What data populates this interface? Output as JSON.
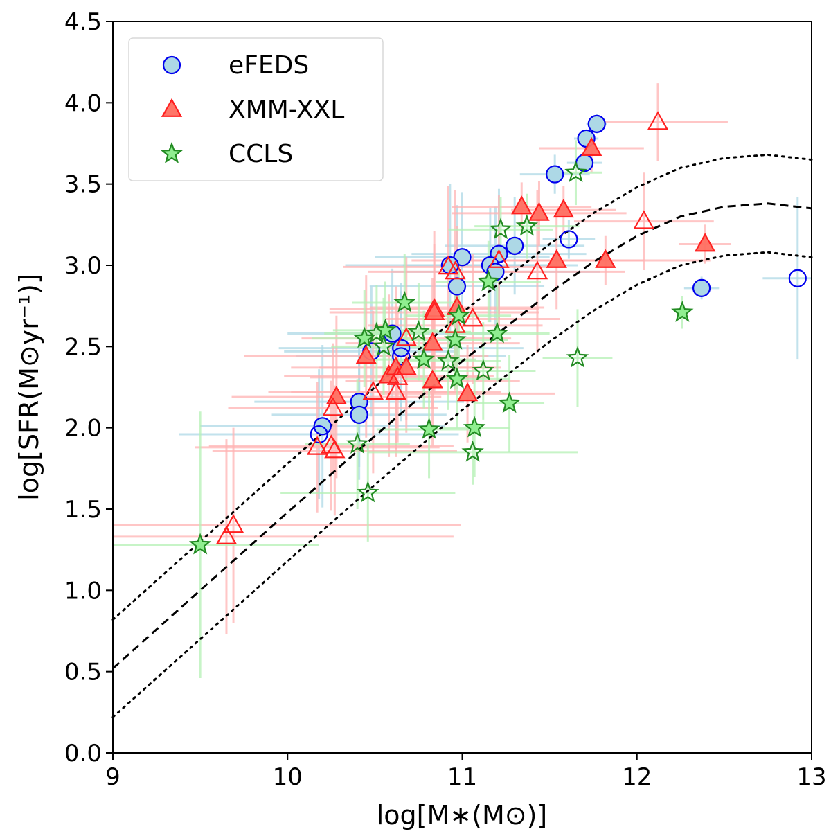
{
  "chart_data": {
    "type": "scatter",
    "title": "",
    "xlabel": "log[M∗(M⊙)]",
    "ylabel": "log[SFR(M⊙yr⁻¹)]",
    "xlim": [
      9,
      13
    ],
    "ylim": [
      0,
      4.5
    ],
    "xticks": [
      "9",
      "10",
      "11",
      "12",
      "13"
    ],
    "yticks": [
      "0.0",
      "0.5",
      "1.0",
      "1.5",
      "2.0",
      "2.5",
      "3.0",
      "3.5",
      "4.0",
      "4.5"
    ],
    "grid": false,
    "legend": {
      "position": "top-left",
      "entries": [
        "eFEDS",
        "XMM-XXL",
        "CCLS"
      ]
    },
    "series": [
      {
        "name": "eFEDS",
        "marker": "circle",
        "color": "#0000ee",
        "fill": "#add8e6",
        "errorbar_color": "#add8e6",
        "points": [
          {
            "x": 11.77,
            "y": 3.87,
            "xerr": 0.06,
            "yerr": 0.06,
            "filled": true
          },
          {
            "x": 11.71,
            "y": 3.78,
            "xerr": 0.07,
            "yerr": 0.05,
            "filled": true
          },
          {
            "x": 11.7,
            "y": 3.63,
            "xerr": 0.1,
            "yerr": 0.06,
            "filled": true
          },
          {
            "x": 11.53,
            "y": 3.56,
            "xerr": 0.2,
            "yerr": 0.12,
            "filled": true
          },
          {
            "x": 11.61,
            "y": 3.16,
            "xerr": 0.15,
            "yerr": 0.12,
            "filled": false
          },
          {
            "x": 11.3,
            "y": 3.12,
            "xerr": 0.4,
            "yerr": 0.3,
            "filled": true
          },
          {
            "x": 11.21,
            "y": 3.07,
            "xerr": 0.5,
            "yerr": 0.4,
            "filled": true
          },
          {
            "x": 11.0,
            "y": 3.05,
            "xerr": 0.5,
            "yerr": 0.4,
            "filled": true
          },
          {
            "x": 11.16,
            "y": 3.0,
            "xerr": 0.5,
            "yerr": 0.35,
            "filled": true
          },
          {
            "x": 11.19,
            "y": 2.96,
            "xerr": 0.6,
            "yerr": 0.4,
            "filled": true
          },
          {
            "x": 10.93,
            "y": 3.0,
            "xerr": 0.6,
            "yerr": 0.5,
            "filled": true
          },
          {
            "x": 10.97,
            "y": 2.87,
            "xerr": 0.5,
            "yerr": 0.5,
            "filled": true
          },
          {
            "x": 10.6,
            "y": 2.58,
            "xerr": 0.6,
            "yerr": 0.4,
            "filled": true
          },
          {
            "x": 10.65,
            "y": 2.49,
            "xerr": 0.7,
            "yerr": 0.4,
            "filled": true
          },
          {
            "x": 10.65,
            "y": 2.44,
            "xerr": 0.6,
            "yerr": 0.4,
            "filled": false
          },
          {
            "x": 10.48,
            "y": 2.47,
            "xerr": 0.5,
            "yerr": 0.4,
            "filled": false
          },
          {
            "x": 10.41,
            "y": 2.16,
            "xerr": 0.6,
            "yerr": 0.4,
            "filled": true
          },
          {
            "x": 10.41,
            "y": 2.08,
            "xerr": 0.5,
            "yerr": 0.4,
            "filled": true
          },
          {
            "x": 10.2,
            "y": 2.01,
            "xerr": 0.7,
            "yerr": 0.5,
            "filled": true
          },
          {
            "x": 10.18,
            "y": 1.96,
            "xerr": 0.8,
            "yerr": 0.4,
            "filled": false
          },
          {
            "x": 12.37,
            "y": 2.86,
            "xerr": 0.1,
            "yerr": 0.07,
            "filled": true
          },
          {
            "x": 12.92,
            "y": 2.92,
            "xerr": 0.2,
            "yerr": 0.5,
            "filled": false
          }
        ]
      },
      {
        "name": "XMM-XXL",
        "marker": "triangle",
        "color": "#ff2020",
        "fill": "#ff6f61",
        "errorbar_color": "#ffb3b3",
        "points": [
          {
            "x": 12.12,
            "y": 3.88,
            "xerr": 0.4,
            "yerr": 0.24,
            "filled": false
          },
          {
            "x": 11.74,
            "y": 3.72,
            "xerr": 0.3,
            "yerr": 0.15,
            "filled": true
          },
          {
            "x": 11.34,
            "y": 3.36,
            "xerr": 0.4,
            "yerr": 0.15,
            "filled": true
          },
          {
            "x": 11.44,
            "y": 3.32,
            "xerr": 0.5,
            "yerr": 0.2,
            "filled": true
          },
          {
            "x": 11.58,
            "y": 3.34,
            "xerr": 0.3,
            "yerr": 0.15,
            "filled": true
          },
          {
            "x": 12.04,
            "y": 3.27,
            "xerr": 0.4,
            "yerr": 0.3,
            "filled": false
          },
          {
            "x": 12.39,
            "y": 3.13,
            "xerr": 0.15,
            "yerr": 0.12,
            "filled": true
          },
          {
            "x": 11.54,
            "y": 3.03,
            "xerr": 0.5,
            "yerr": 0.3,
            "filled": true
          },
          {
            "x": 11.82,
            "y": 3.03,
            "xerr": 0.6,
            "yerr": 0.15,
            "filled": true
          },
          {
            "x": 11.43,
            "y": 2.96,
            "xerr": 0.5,
            "yerr": 0.5,
            "filled": false
          },
          {
            "x": 11.21,
            "y": 3.03,
            "xerr": 0.5,
            "yerr": 0.4,
            "filled": false
          },
          {
            "x": 10.92,
            "y": 2.99,
            "xerr": 0.6,
            "yerr": 0.5,
            "filled": false
          },
          {
            "x": 10.96,
            "y": 2.96,
            "xerr": 0.5,
            "yerr": 0.5,
            "filled": false
          },
          {
            "x": 10.84,
            "y": 2.73,
            "xerr": 0.6,
            "yerr": 0.4,
            "filled": false
          },
          {
            "x": 10.84,
            "y": 2.71,
            "xerr": 0.6,
            "yerr": 0.5,
            "filled": true
          },
          {
            "x": 10.97,
            "y": 2.74,
            "xerr": 0.5,
            "yerr": 0.5,
            "filled": true
          },
          {
            "x": 10.96,
            "y": 2.63,
            "xerr": 0.5,
            "yerr": 0.4,
            "filled": false
          },
          {
            "x": 11.06,
            "y": 2.67,
            "xerr": 0.5,
            "yerr": 0.4,
            "filled": false
          },
          {
            "x": 10.83,
            "y": 2.52,
            "xerr": 0.5,
            "yerr": 0.4,
            "filled": true
          },
          {
            "x": 10.68,
            "y": 2.55,
            "xerr": 0.6,
            "yerr": 0.5,
            "filled": false
          },
          {
            "x": 10.45,
            "y": 2.44,
            "xerr": 0.7,
            "yerr": 0.5,
            "filled": true
          },
          {
            "x": 10.58,
            "y": 2.32,
            "xerr": 0.6,
            "yerr": 0.5,
            "filled": true
          },
          {
            "x": 10.62,
            "y": 2.37,
            "xerr": 0.6,
            "yerr": 0.5,
            "filled": true
          },
          {
            "x": 10.68,
            "y": 2.37,
            "xerr": 0.5,
            "yerr": 0.4,
            "filled": true
          },
          {
            "x": 10.63,
            "y": 2.31,
            "xerr": 0.5,
            "yerr": 0.4,
            "filled": false
          },
          {
            "x": 10.62,
            "y": 2.22,
            "xerr": 0.6,
            "yerr": 0.4,
            "filled": false
          },
          {
            "x": 10.49,
            "y": 2.22,
            "xerr": 0.6,
            "yerr": 0.5,
            "filled": false
          },
          {
            "x": 10.83,
            "y": 2.29,
            "xerr": 0.5,
            "yerr": 0.4,
            "filled": true
          },
          {
            "x": 11.03,
            "y": 2.21,
            "xerr": 0.5,
            "yerr": 0.3,
            "filled": true
          },
          {
            "x": 10.28,
            "y": 2.19,
            "xerr": 0.6,
            "yerr": 0.5,
            "filled": true
          },
          {
            "x": 10.26,
            "y": 2.12,
            "xerr": 0.6,
            "yerr": 0.4,
            "filled": false
          },
          {
            "x": 10.17,
            "y": 1.88,
            "xerr": 0.7,
            "yerr": 0.4,
            "filled": false
          },
          {
            "x": 10.25,
            "y": 1.89,
            "xerr": 0.7,
            "yerr": 0.4,
            "filled": false
          },
          {
            "x": 10.27,
            "y": 1.86,
            "xerr": 0.7,
            "yerr": 0.4,
            "filled": false
          },
          {
            "x": 9.69,
            "y": 1.4,
            "xerr": 1.3,
            "yerr": 0.6,
            "filled": false
          },
          {
            "x": 9.65,
            "y": 1.33,
            "xerr": 1.3,
            "yerr": 0.6,
            "filled": false
          }
        ]
      },
      {
        "name": "CCLS",
        "marker": "star",
        "color": "#228b22",
        "fill": "#90ee90",
        "errorbar_color": "#b4f0b4",
        "points": [
          {
            "x": 11.65,
            "y": 3.57,
            "xerr": 0.15,
            "yerr": 0.2,
            "filled": false
          },
          {
            "x": 11.37,
            "y": 3.24,
            "xerr": 0.3,
            "yerr": 0.2,
            "filled": false
          },
          {
            "x": 11.22,
            "y": 3.22,
            "xerr": 0.3,
            "yerr": 0.2,
            "filled": false
          },
          {
            "x": 11.15,
            "y": 2.9,
            "xerr": 0.3,
            "yerr": 0.25,
            "filled": true
          },
          {
            "x": 10.67,
            "y": 2.77,
            "xerr": 0.3,
            "yerr": 0.3,
            "filled": true
          },
          {
            "x": 10.98,
            "y": 2.69,
            "xerr": 0.3,
            "yerr": 0.3,
            "filled": true
          },
          {
            "x": 10.75,
            "y": 2.59,
            "xerr": 0.3,
            "yerr": 0.3,
            "filled": false
          },
          {
            "x": 10.44,
            "y": 2.55,
            "xerr": 0.3,
            "yerr": 0.3,
            "filled": true
          },
          {
            "x": 10.51,
            "y": 2.58,
            "xerr": 0.3,
            "yerr": 0.3,
            "filled": false
          },
          {
            "x": 10.56,
            "y": 2.6,
            "xerr": 0.3,
            "yerr": 0.3,
            "filled": true
          },
          {
            "x": 10.55,
            "y": 2.5,
            "xerr": 0.3,
            "yerr": 0.3,
            "filled": false
          },
          {
            "x": 10.96,
            "y": 2.54,
            "xerr": 0.3,
            "yerr": 0.3,
            "filled": true
          },
          {
            "x": 11.2,
            "y": 2.58,
            "xerr": 0.3,
            "yerr": 0.3,
            "filled": true
          },
          {
            "x": 10.78,
            "y": 2.42,
            "xerr": 0.3,
            "yerr": 0.3,
            "filled": true
          },
          {
            "x": 10.92,
            "y": 2.41,
            "xerr": 0.3,
            "yerr": 0.3,
            "filled": false
          },
          {
            "x": 11.12,
            "y": 2.35,
            "xerr": 0.3,
            "yerr": 0.3,
            "filled": false
          },
          {
            "x": 10.97,
            "y": 2.3,
            "xerr": 0.3,
            "yerr": 0.3,
            "filled": true
          },
          {
            "x": 11.66,
            "y": 2.43,
            "xerr": 0.2,
            "yerr": 0.3,
            "filled": false
          },
          {
            "x": 11.27,
            "y": 2.15,
            "xerr": 0.2,
            "yerr": 0.3,
            "filled": true
          },
          {
            "x": 10.81,
            "y": 1.99,
            "xerr": 0.3,
            "yerr": 0.3,
            "filled": true
          },
          {
            "x": 11.07,
            "y": 2.0,
            "xerr": 0.2,
            "yerr": 0.3,
            "filled": true
          },
          {
            "x": 11.06,
            "y": 1.85,
            "xerr": 0.6,
            "yerr": 0.2,
            "filled": false
          },
          {
            "x": 10.4,
            "y": 1.9,
            "xerr": 0.3,
            "yerr": 0.4,
            "filled": false
          },
          {
            "x": 10.46,
            "y": 1.6,
            "xerr": 0.5,
            "yerr": 0.3,
            "filled": false
          },
          {
            "x": 12.26,
            "y": 2.71,
            "xerr": 0.02,
            "yerr": 0.1,
            "filled": true
          },
          {
            "x": 9.5,
            "y": 1.28,
            "xerr": 0.68,
            "yerr": 0.82,
            "filled": true
          }
        ]
      }
    ],
    "reference_curves": [
      {
        "name": "main-sequence",
        "style": "dashed",
        "x": [
          9.0,
          9.5,
          10.0,
          10.5,
          11.0,
          11.5,
          11.75,
          12.0,
          12.25,
          12.5,
          12.75,
          13.0
        ],
        "y": [
          0.52,
          1.0,
          1.48,
          1.95,
          2.41,
          2.83,
          3.02,
          3.18,
          3.3,
          3.36,
          3.38,
          3.35
        ]
      },
      {
        "name": "main-sequence-upper",
        "style": "dotted",
        "offset": 0.3
      },
      {
        "name": "main-sequence-lower",
        "style": "dotted",
        "offset": -0.3
      }
    ]
  }
}
